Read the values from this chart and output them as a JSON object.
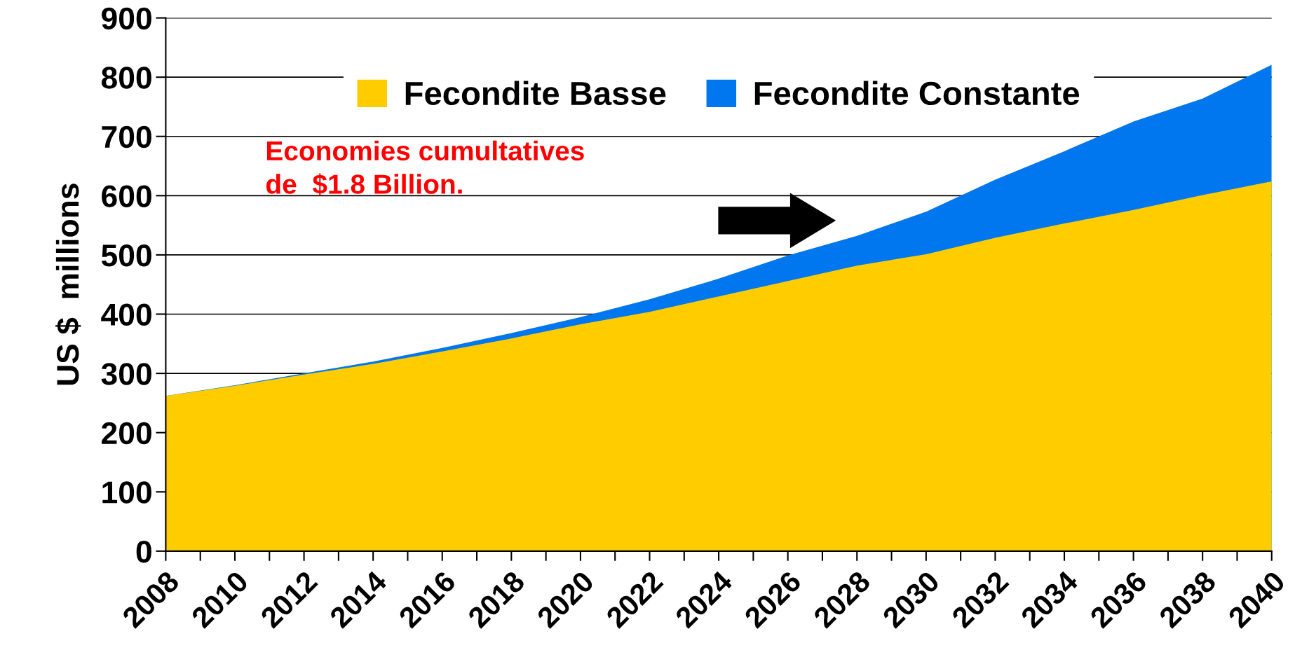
{
  "chart_data": {
    "type": "area",
    "ylabel": "US $  millions",
    "x": [
      2008,
      2010,
      2012,
      2014,
      2016,
      2018,
      2020,
      2022,
      2024,
      2026,
      2028,
      2030,
      2032,
      2034,
      2036,
      2038,
      2040
    ],
    "series": [
      {
        "name": "Fecondite Constante",
        "color": "#0077ee",
        "values": [
          262,
          280,
          300,
          320,
          343,
          368,
          395,
          425,
          460,
          499,
          532,
          573,
          627,
          675,
          725,
          764,
          821
        ]
      },
      {
        "name": "Fecondite Basse",
        "color": "#ffcc00",
        "values": [
          262,
          279,
          298,
          316,
          337,
          359,
          383,
          404,
          430,
          456,
          482,
          501,
          529,
          553,
          576,
          601,
          624
        ]
      }
    ],
    "xlim": [
      2008,
      2040
    ],
    "xticks": [
      2008,
      {
        "value": 2009,
        "label": null
      },
      2010,
      {
        "value": 2011,
        "label": null
      },
      2012,
      {
        "value": 2013,
        "label": null
      },
      2014,
      {
        "value": 2015,
        "label": null
      },
      2016,
      {
        "value": 2017,
        "label": null
      },
      2018,
      {
        "value": 2019,
        "label": null
      },
      2020,
      {
        "value": 2021,
        "label": null
      },
      2022,
      {
        "value": 2023,
        "label": null
      },
      2024,
      {
        "value": 2025,
        "label": null
      },
      2026,
      {
        "value": 2027,
        "label": null
      },
      2028,
      {
        "value": 2029,
        "label": null
      },
      2030,
      {
        "value": 2031,
        "label": null
      },
      2032,
      {
        "value": 2033,
        "label": null
      },
      2034,
      {
        "value": 2035,
        "label": null
      },
      2036,
      {
        "value": 2037,
        "label": null
      },
      2038,
      {
        "value": 2039,
        "label": null
      },
      2040
    ],
    "ylim": [
      0,
      900
    ],
    "yticks": [
      0,
      100,
      200,
      300,
      400,
      500,
      600,
      700,
      800,
      900
    ],
    "grid": "y",
    "legend": "top",
    "annotations": [
      "Economies cumultatives\nde  $1.8 Billion."
    ]
  }
}
